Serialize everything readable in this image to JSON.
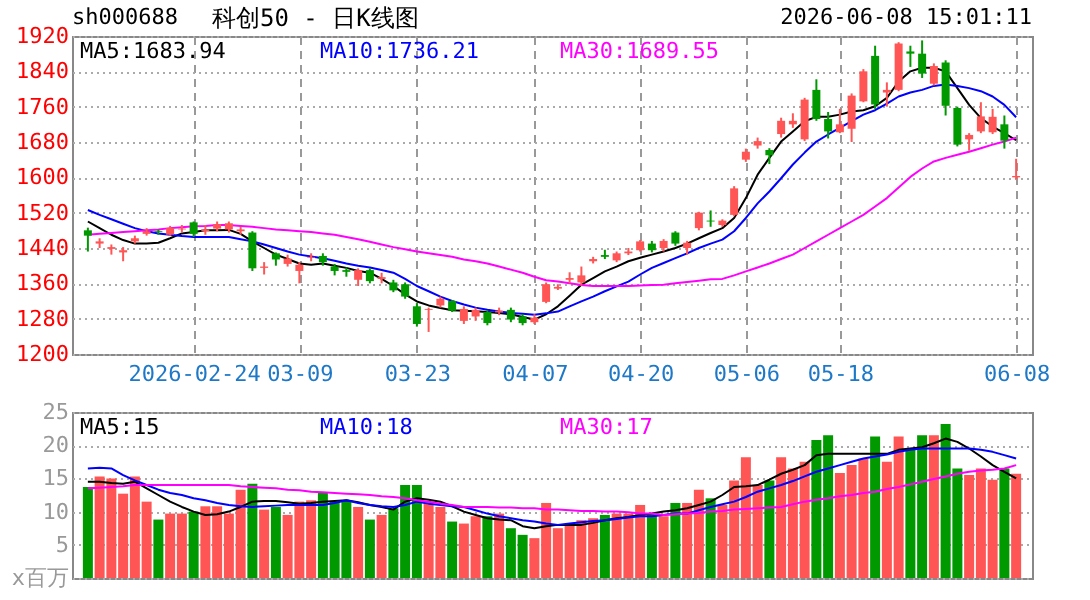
{
  "chart_data": [
    {
      "type": "candlestick",
      "title": "科创50 - 日K线图",
      "annotations": [
        "sh000688",
        "2026-06-08 15:01:11"
      ],
      "categories": [
        null,
        null,
        null,
        null,
        null,
        null,
        null,
        null,
        null,
        "2026-02-24",
        null,
        null,
        null,
        null,
        null,
        null,
        null,
        null,
        "03-09",
        null,
        null,
        null,
        null,
        null,
        null,
        null,
        null,
        null,
        "03-23",
        null,
        null,
        null,
        null,
        null,
        null,
        null,
        null,
        null,
        "04-07",
        null,
        null,
        null,
        null,
        null,
        null,
        null,
        null,
        "04-20",
        null,
        null,
        null,
        null,
        null,
        null,
        null,
        null,
        "05-06",
        null,
        null,
        null,
        null,
        null,
        null,
        null,
        "05-18",
        null,
        null,
        null,
        null,
        null,
        null,
        null,
        null,
        null,
        null,
        null,
        null,
        null,
        null,
        "06-08"
      ],
      "ohlc": [
        [
          1480,
          1486,
          1432,
          1468
        ],
        [
          1450,
          1462,
          1440,
          1455
        ],
        [
          1438,
          1448,
          1425,
          1442
        ],
        [
          1430,
          1442,
          1410,
          1435
        ],
        [
          1455,
          1468,
          1450,
          1462
        ],
        [
          1472,
          1485,
          1468,
          1478
        ],
        [
          1478,
          1482,
          1470,
          1476
        ],
        [
          1470,
          1490,
          1468,
          1485
        ],
        [
          1482,
          1492,
          1475,
          1484
        ],
        [
          1498,
          1500,
          1465,
          1472
        ],
        [
          1478,
          1492,
          1470,
          1482
        ],
        [
          1484,
          1500,
          1478,
          1494
        ],
        [
          1482,
          1500,
          1475,
          1496
        ],
        [
          1478,
          1488,
          1470,
          1482
        ],
        [
          1475,
          1478,
          1388,
          1394
        ],
        [
          1395,
          1408,
          1380,
          1398
        ],
        [
          1428,
          1430,
          1400,
          1414
        ],
        [
          1404,
          1425,
          1398,
          1416
        ],
        [
          1388,
          1408,
          1360,
          1402
        ],
        [
          1418,
          1428,
          1410,
          1420
        ],
        [
          1422,
          1428,
          1400,
          1408
        ],
        [
          1398,
          1404,
          1378,
          1388
        ],
        [
          1390,
          1396,
          1375,
          1386
        ],
        [
          1368,
          1394,
          1354,
          1390
        ],
        [
          1390,
          1394,
          1360,
          1365
        ],
        [
          1370,
          1384,
          1360,
          1374
        ],
        [
          1362,
          1368,
          1340,
          1344
        ],
        [
          1358,
          1362,
          1325,
          1330
        ],
        [
          1308,
          1315,
          1262,
          1268
        ],
        [
          1300,
          1305,
          1250,
          1302
        ],
        [
          1310,
          1330,
          1305,
          1325
        ],
        [
          1320,
          1322,
          1295,
          1298
        ],
        [
          1275,
          1308,
          1268,
          1302
        ],
        [
          1285,
          1305,
          1275,
          1300
        ],
        [
          1295,
          1298,
          1265,
          1270
        ],
        [
          1294,
          1305,
          1288,
          1298
        ],
        [
          1300,
          1305,
          1272,
          1278
        ],
        [
          1285,
          1290,
          1265,
          1270
        ],
        [
          1272,
          1290,
          1268,
          1282
        ],
        [
          1318,
          1362,
          1315,
          1358
        ],
        [
          1348,
          1358,
          1345,
          1352
        ],
        [
          1368,
          1385,
          1360,
          1372
        ],
        [
          1362,
          1398,
          1355,
          1378
        ],
        [
          1410,
          1420,
          1405,
          1415
        ],
        [
          1424,
          1436,
          1415,
          1420
        ],
        [
          1412,
          1432,
          1408,
          1428
        ],
        [
          1428,
          1440,
          1424,
          1432
        ],
        [
          1435,
          1458,
          1432,
          1455
        ],
        [
          1450,
          1456,
          1430,
          1435
        ],
        [
          1440,
          1460,
          1432,
          1456
        ],
        [
          1475,
          1478,
          1445,
          1450
        ],
        [
          1440,
          1456,
          1425,
          1452
        ],
        [
          1485,
          1522,
          1480,
          1520
        ],
        [
          1502,
          1525,
          1488,
          1500
        ],
        [
          1492,
          1505,
          1488,
          1502
        ],
        [
          1515,
          1580,
          1512,
          1575
        ],
        [
          1640,
          1665,
          1635,
          1658
        ],
        [
          1672,
          1690,
          1665,
          1682
        ],
        [
          1662,
          1666,
          1630,
          1650
        ],
        [
          1698,
          1735,
          1690,
          1728
        ],
        [
          1720,
          1745,
          1712,
          1728
        ],
        [
          1686,
          1780,
          1682,
          1776
        ],
        [
          1798,
          1822,
          1728,
          1732
        ],
        [
          1732,
          1748,
          1688,
          1704
        ],
        [
          1702,
          1755,
          1700,
          1720
        ],
        [
          1710,
          1790,
          1680,
          1785
        ],
        [
          1772,
          1845,
          1770,
          1840
        ],
        [
          1875,
          1898,
          1755,
          1765
        ],
        [
          1792,
          1815,
          1760,
          1798
        ],
        [
          1798,
          1906,
          1795,
          1903
        ],
        [
          1885,
          1898,
          1850,
          1880
        ],
        [
          1880,
          1910,
          1825,
          1835
        ],
        [
          1812,
          1858,
          1808,
          1852
        ],
        [
          1860,
          1865,
          1740,
          1762
        ],
        [
          1757,
          1760,
          1670,
          1674
        ],
        [
          1686,
          1700,
          1660,
          1696
        ],
        [
          1704,
          1770,
          1700,
          1738
        ],
        [
          1702,
          1755,
          1698,
          1737
        ],
        [
          1720,
          1740,
          1665,
          1683
        ],
        [
          1600,
          1642,
          1595,
          1603
        ]
      ],
      "colors": [
        "#009900",
        "#ff5555",
        "#ff5555",
        "#ff5555",
        "#ff5555",
        "#ff5555",
        "#009900",
        "#ff5555",
        "#ff5555",
        "#009900",
        "#ff5555",
        "#ff5555",
        "#ff5555",
        "#ff5555",
        "#009900",
        "#ff5555",
        "#009900",
        "#ff5555",
        "#ff5555",
        "#ff5555",
        "#009900",
        "#009900",
        "#009900",
        "#ff5555",
        "#009900",
        "#ff5555",
        "#009900",
        "#009900",
        "#009900",
        "#ff5555",
        "#ff5555",
        "#009900",
        "#ff5555",
        "#ff5555",
        "#009900",
        "#ff5555",
        "#009900",
        "#009900",
        "#ff5555",
        "#ff5555",
        "#ff5555",
        "#ff5555",
        "#ff5555",
        "#ff5555",
        "#009900",
        "#ff5555",
        "#ff5555",
        "#ff5555",
        "#009900",
        "#ff5555",
        "#009900",
        "#ff5555",
        "#ff5555",
        "#009900",
        "#ff5555",
        "#ff5555",
        "#ff5555",
        "#ff5555",
        "#009900",
        "#ff5555",
        "#ff5555",
        "#ff5555",
        "#009900",
        "#009900",
        "#ff5555",
        "#ff5555",
        "#ff5555",
        "#009900",
        "#ff5555",
        "#ff5555",
        "#009900",
        "#009900",
        "#ff5555",
        "#009900",
        "#009900",
        "#ff5555",
        "#ff5555",
        "#ff5555",
        "#009900",
        "#ff5555"
      ],
      "series": [
        {
          "name": "MA5:1683.94",
          "type": "line",
          "color": "#000000",
          "values": [
            1500,
            1485,
            1470,
            1458,
            1450,
            1450,
            1452,
            1462,
            1473,
            1476,
            1480,
            1480,
            1481,
            1472,
            1455,
            1440,
            1425,
            1415,
            1405,
            1402,
            1405,
            1400,
            1395,
            1388,
            1384,
            1370,
            1354,
            1335,
            1319,
            1310,
            1304,
            1299,
            1298,
            1297,
            1295,
            1293,
            1290,
            1284,
            1278,
            1290,
            1308,
            1332,
            1357,
            1372,
            1387,
            1398,
            1410,
            1418,
            1425,
            1432,
            1440,
            1450,
            1462,
            1474,
            1485,
            1508,
            1553,
            1606,
            1644,
            1681,
            1704,
            1727,
            1737,
            1737,
            1742,
            1749,
            1752,
            1761,
            1780,
            1817,
            1840,
            1848,
            1848,
            1840,
            1802,
            1764,
            1734,
            1715,
            1700,
            1684
          ]
        },
        {
          "name": "MA10:1736.21",
          "type": "line",
          "color": "#0000ff",
          "values": [
            1526,
            1515,
            1505,
            1495,
            1485,
            1478,
            1473,
            1470,
            1467,
            1465,
            1465,
            1465,
            1465,
            1460,
            1455,
            1448,
            1440,
            1432,
            1425,
            1421,
            1417,
            1411,
            1405,
            1400,
            1396,
            1390,
            1384,
            1370,
            1354,
            1342,
            1330,
            1320,
            1312,
            1305,
            1300,
            1296,
            1293,
            1291,
            1289,
            1292,
            1296,
            1308,
            1319,
            1330,
            1342,
            1353,
            1364,
            1380,
            1395,
            1406,
            1417,
            1428,
            1440,
            1450,
            1459,
            1478,
            1508,
            1541,
            1568,
            1598,
            1629,
            1656,
            1681,
            1697,
            1712,
            1727,
            1742,
            1752,
            1767,
            1783,
            1792,
            1798,
            1807,
            1810,
            1807,
            1802,
            1795,
            1783,
            1764,
            1736
          ]
        },
        {
          "name": "MA30:1689.55",
          "type": "line",
          "color": "#ff00ff",
          "values": [
            1470,
            1472,
            1474,
            1476,
            1478,
            1480,
            1482,
            1485,
            1487,
            1489,
            1490,
            1492,
            1492,
            1490,
            1488,
            1485,
            1482,
            1480,
            1478,
            1476,
            1473,
            1470,
            1465,
            1460,
            1454,
            1448,
            1442,
            1437,
            1432,
            1428,
            1424,
            1420,
            1414,
            1410,
            1405,
            1398,
            1391,
            1384,
            1375,
            1367,
            1364,
            1360,
            1356,
            1354,
            1354,
            1354,
            1354,
            1355,
            1356,
            1357,
            1360,
            1363,
            1366,
            1369,
            1370,
            1378,
            1387,
            1396,
            1405,
            1415,
            1425,
            1440,
            1455,
            1470,
            1485,
            1500,
            1515,
            1534,
            1553,
            1577,
            1601,
            1620,
            1636,
            1644,
            1651,
            1658,
            1666,
            1674,
            1681,
            1690
          ]
        }
      ],
      "ylim": [
        1200,
        1920
      ],
      "yticks": [
        1200,
        1280,
        1360,
        1440,
        1520,
        1600,
        1680,
        1760,
        1840,
        1920
      ],
      "grid": true,
      "legend": "top left"
    },
    {
      "type": "bar",
      "categories": [
        null,
        null,
        null,
        null,
        null,
        null,
        null,
        null,
        null,
        null,
        null,
        null,
        null,
        null,
        null,
        null,
        null,
        null,
        null,
        null,
        null,
        null,
        null,
        null,
        null,
        null,
        null,
        null,
        null,
        null,
        null,
        null,
        null,
        null,
        null,
        null,
        null,
        null,
        null,
        null,
        null,
        null,
        null,
        null,
        null,
        null,
        null,
        null,
        null,
        null,
        null,
        null,
        null,
        null,
        null,
        null,
        null,
        null,
        null,
        null,
        null,
        null,
        null,
        null,
        null,
        null,
        null,
        null,
        null,
        null,
        null,
        null,
        null,
        null,
        null,
        null,
        null,
        null,
        null,
        null
      ],
      "series": [
        {
          "type": "bar",
          "values": [
            13.7,
            15.3,
            15.0,
            12.7,
            15.3,
            11.5,
            8.8,
            9.7,
            9.7,
            10.0,
            10.8,
            10.8,
            9.7,
            13.3,
            14.2,
            10.3,
            10.7,
            9.5,
            11.5,
            11.7,
            12.8,
            11.5,
            11.7,
            10.7,
            8.8,
            9.5,
            10.5,
            14.0,
            14.0,
            11.5,
            10.7,
            8.5,
            8.2,
            9.3,
            9.3,
            9.7,
            7.5,
            6.5,
            6.0,
            11.3,
            7.5,
            8.0,
            8.7,
            9.0,
            9.5,
            9.7,
            9.7,
            11.0,
            9.7,
            9.3,
            11.3,
            11.3,
            13.3,
            12.0,
            11.0,
            14.7,
            18.2,
            14.0,
            14.7,
            18.2,
            16.5,
            17.5,
            20.8,
            21.5,
            15.8,
            17.0,
            18.0,
            21.3,
            17.5,
            21.3,
            19.5,
            21.5,
            21.5,
            23.2,
            16.5,
            15.5,
            16.5,
            14.8,
            16.5,
            15.7
          ],
          "colors": [
            "#009900",
            "#ff5555",
            "#ff5555",
            "#ff5555",
            "#ff5555",
            "#ff5555",
            "#009900",
            "#ff5555",
            "#ff5555",
            "#009900",
            "#ff5555",
            "#ff5555",
            "#ff5555",
            "#ff5555",
            "#009900",
            "#ff5555",
            "#009900",
            "#ff5555",
            "#ff5555",
            "#ff5555",
            "#009900",
            "#009900",
            "#009900",
            "#ff5555",
            "#009900",
            "#ff5555",
            "#009900",
            "#009900",
            "#009900",
            "#ff5555",
            "#ff5555",
            "#009900",
            "#ff5555",
            "#ff5555",
            "#009900",
            "#ff5555",
            "#009900",
            "#009900",
            "#ff5555",
            "#ff5555",
            "#ff5555",
            "#ff5555",
            "#ff5555",
            "#ff5555",
            "#009900",
            "#ff5555",
            "#ff5555",
            "#ff5555",
            "#009900",
            "#ff5555",
            "#009900",
            "#ff5555",
            "#ff5555",
            "#009900",
            "#ff5555",
            "#ff5555",
            "#ff5555",
            "#ff5555",
            "#009900",
            "#ff5555",
            "#ff5555",
            "#ff5555",
            "#009900",
            "#009900",
            "#ff5555",
            "#ff5555",
            "#ff5555",
            "#009900",
            "#ff5555",
            "#ff5555",
            "#009900",
            "#009900",
            "#ff5555",
            "#009900",
            "#009900",
            "#ff5555",
            "#ff5555",
            "#ff5555",
            "#009900",
            "#ff5555"
          ]
        },
        {
          "name": "MA5:15",
          "type": "line",
          "color": "#000000",
          "values": [
            14.5,
            14.5,
            14.3,
            14.2,
            14.5,
            13.5,
            12.5,
            11.5,
            10.7,
            10.0,
            9.5,
            9.6,
            10.0,
            10.7,
            11.5,
            11.6,
            11.6,
            11.4,
            11.2,
            11.3,
            11.5,
            11.6,
            11.7,
            11.4,
            11.0,
            10.7,
            10.3,
            11.5,
            12.0,
            11.8,
            11.5,
            10.8,
            10.0,
            9.5,
            9.0,
            8.8,
            8.7,
            7.8,
            7.5,
            7.8,
            8.0,
            8.0,
            8.0,
            8.3,
            8.7,
            9.0,
            9.2,
            9.5,
            9.7,
            10.0,
            10.2,
            10.5,
            11.0,
            11.5,
            12.5,
            13.7,
            13.8,
            14.0,
            14.8,
            15.7,
            16.3,
            17.0,
            18.5,
            18.7,
            18.7,
            18.7,
            18.7,
            18.7,
            18.7,
            19.3,
            19.5,
            19.7,
            20.3,
            21.0,
            20.5,
            19.5,
            18.3,
            17.0,
            16.0,
            15
          ]
        },
        {
          "name": "MA10:18",
          "type": "line",
          "color": "#0000ff",
          "values": [
            16.5,
            16.6,
            16.5,
            15.5,
            14.7,
            14.0,
            13.3,
            12.8,
            12.5,
            12.0,
            11.7,
            11.3,
            11.0,
            10.8,
            10.7,
            10.8,
            10.9,
            11.0,
            11.0,
            11.0,
            11.0,
            11.3,
            11.7,
            11.3,
            11.0,
            10.8,
            10.7,
            11.0,
            11.5,
            11.2,
            11.0,
            10.8,
            10.7,
            10.2,
            9.7,
            9.3,
            9.0,
            8.7,
            8.5,
            8.2,
            8.0,
            8.2,
            8.4,
            8.6,
            8.7,
            8.9,
            9.1,
            9.3,
            9.3,
            9.5,
            9.7,
            9.7,
            10.2,
            10.7,
            11.1,
            11.5,
            12.2,
            13.0,
            13.5,
            14.0,
            14.6,
            15.3,
            16.0,
            16.5,
            17.0,
            17.5,
            18.0,
            18.3,
            18.6,
            19.0,
            19.3,
            19.5,
            19.5,
            19.5,
            19.5,
            19.5,
            19.3,
            19.0,
            18.5,
            18
          ]
        },
        {
          "name": "MA30:17",
          "type": "line",
          "color": "#ff00ff",
          "values": [
            13.5,
            13.6,
            13.7,
            13.8,
            14.0,
            14.0,
            14.0,
            14.0,
            14.0,
            14.0,
            14.0,
            14.0,
            14.0,
            13.8,
            13.7,
            13.6,
            13.5,
            13.3,
            13.2,
            13.0,
            12.9,
            12.8,
            12.7,
            12.6,
            12.5,
            12.3,
            12.2,
            12.0,
            11.7,
            11.5,
            11.2,
            11.0,
            10.7,
            10.7,
            10.7,
            10.6,
            10.6,
            10.5,
            10.5,
            10.3,
            10.3,
            10.2,
            10.1,
            10.1,
            10.0,
            10.0,
            9.9,
            9.7,
            9.7,
            9.5,
            9.6,
            9.7,
            9.8,
            10.0,
            10.1,
            10.3,
            10.4,
            10.5,
            10.6,
            10.7,
            11.1,
            11.5,
            11.8,
            12.0,
            12.3,
            12.5,
            12.8,
            13.0,
            13.4,
            13.7,
            14.1,
            14.5,
            14.9,
            15.3,
            15.7,
            16.0,
            16.2,
            16.3,
            16.5,
            17
          ]
        }
      ],
      "ylim": [
        0,
        25
      ],
      "yticks": [
        {
          "value": 0,
          "label": "x百万"
        },
        5,
        10,
        15,
        20,
        25
      ],
      "grid": true,
      "tick_labels": "y",
      "legend": "top left"
    }
  ]
}
